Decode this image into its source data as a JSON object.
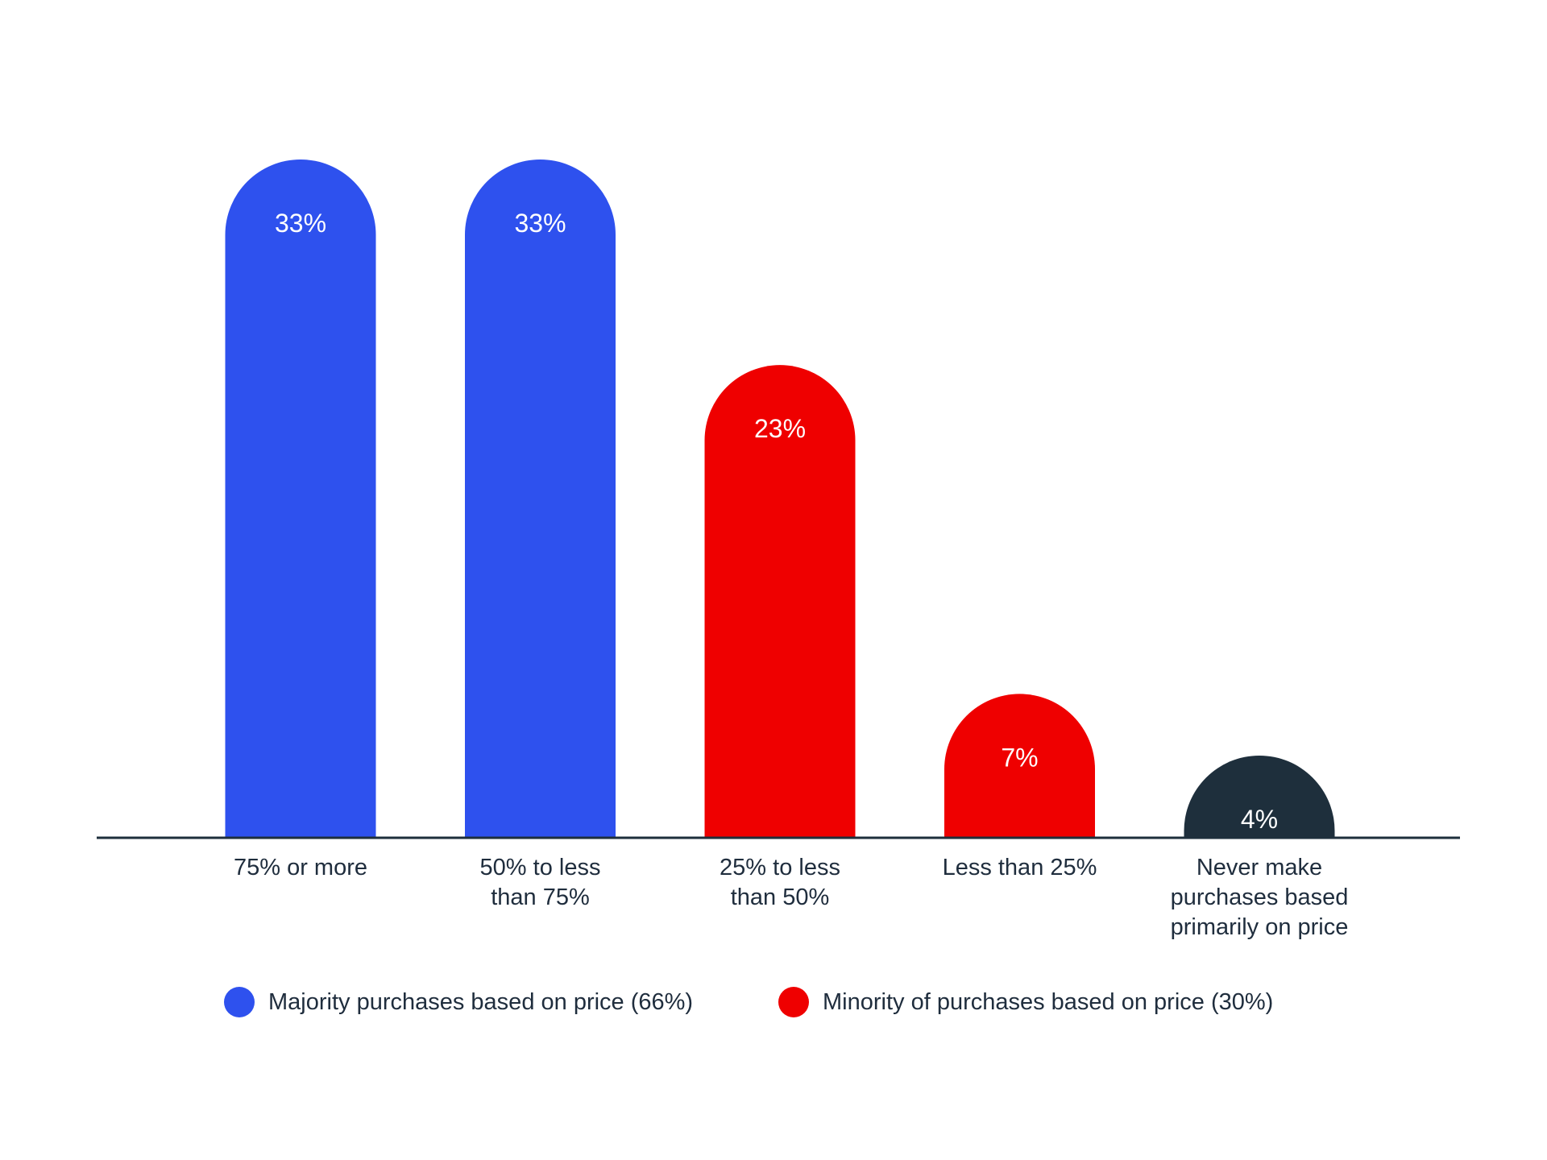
{
  "chart_data": {
    "type": "bar",
    "categories": [
      "75% or more",
      "50% to less than 75%",
      "25% to less than 50%",
      "Less than 25%",
      "Never make purchases based primarily on price"
    ],
    "category_label_lines": [
      [
        "75% or more"
      ],
      [
        "50% to less",
        "than 75%"
      ],
      [
        "25% to less",
        "than 50%"
      ],
      [
        "Less than 25%"
      ],
      [
        "Never make",
        "purchases based",
        "primarily on price"
      ]
    ],
    "values": [
      33,
      33,
      23,
      7,
      4
    ],
    "data_labels": [
      "33%",
      "33%",
      "23%",
      "7%",
      "4%"
    ],
    "bar_colors": [
      "#2e51ee",
      "#2e51ee",
      "#ef0000",
      "#ef0000",
      "#1e2f3c"
    ],
    "ylim": [
      0,
      33
    ],
    "grid": false,
    "title": "",
    "xlabel": "",
    "ylabel": "",
    "legend": {
      "position": "bottom",
      "items": [
        {
          "label": "Majority purchases based on price (66%)",
          "color": "#2e51ee"
        },
        {
          "label": "Minority of purchases based on price (30%)",
          "color": "#ef0000"
        }
      ]
    },
    "colors": {
      "axis": "#1e2f3c",
      "label_text": "#1f2d3d",
      "data_label_text": "#ffffff"
    }
  }
}
